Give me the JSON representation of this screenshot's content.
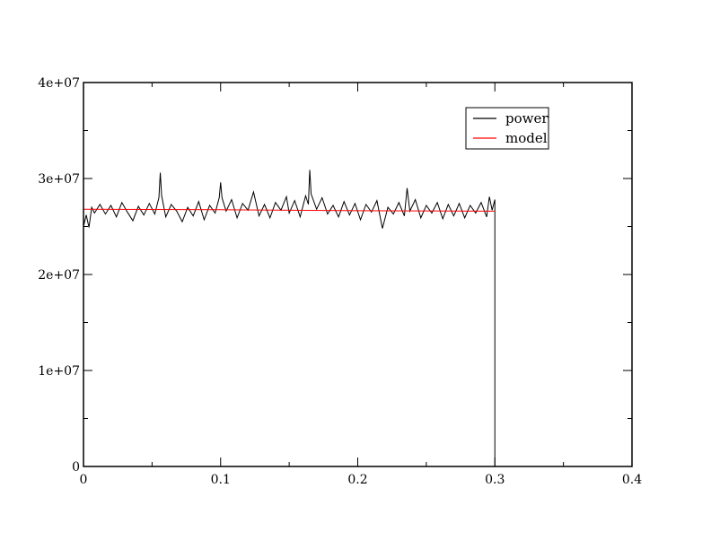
{
  "chart_data": {
    "type": "line",
    "title": "",
    "xlabel": "",
    "ylabel": "",
    "xlim": [
      0,
      0.4
    ],
    "ylim": [
      0,
      40000000
    ],
    "x_ticks": [
      {
        "value": 0,
        "label": "0"
      },
      {
        "value": 0.1,
        "label": "0.1"
      },
      {
        "value": 0.2,
        "label": "0.2"
      },
      {
        "value": 0.3,
        "label": "0.3"
      },
      {
        "value": 0.4,
        "label": "0.4"
      }
    ],
    "y_ticks": [
      {
        "value": 0,
        "label": "0"
      },
      {
        "value": 10000000,
        "label": "1e+07"
      },
      {
        "value": 20000000,
        "label": "2e+07"
      },
      {
        "value": 30000000,
        "label": "3e+07"
      },
      {
        "value": 40000000,
        "label": "4e+07"
      }
    ],
    "grid": false,
    "legend_position": "top-right",
    "series": [
      {
        "name": "power",
        "color": "#000000",
        "style": "noisy line around the model level, ending with a vertical drop to 0 at x = 0.3",
        "points": [
          [
            0.0,
            25000000
          ],
          [
            0.002,
            26200000
          ],
          [
            0.004,
            24900000
          ],
          [
            0.006,
            27000000
          ],
          [
            0.008,
            26400000
          ],
          [
            0.012,
            27300000
          ],
          [
            0.016,
            26300000
          ],
          [
            0.02,
            27200000
          ],
          [
            0.024,
            26000000
          ],
          [
            0.028,
            27500000
          ],
          [
            0.032,
            26500000
          ],
          [
            0.036,
            25600000
          ],
          [
            0.04,
            27100000
          ],
          [
            0.044,
            26200000
          ],
          [
            0.048,
            27400000
          ],
          [
            0.052,
            26300000
          ],
          [
            0.055,
            28000000
          ],
          [
            0.056,
            30600000
          ],
          [
            0.057,
            28200000
          ],
          [
            0.06,
            26000000
          ],
          [
            0.064,
            27300000
          ],
          [
            0.068,
            26600000
          ],
          [
            0.072,
            25500000
          ],
          [
            0.076,
            27000000
          ],
          [
            0.08,
            26100000
          ],
          [
            0.084,
            27600000
          ],
          [
            0.088,
            25700000
          ],
          [
            0.092,
            27200000
          ],
          [
            0.096,
            26400000
          ],
          [
            0.099,
            28000000
          ],
          [
            0.1,
            29600000
          ],
          [
            0.101,
            28000000
          ],
          [
            0.104,
            26600000
          ],
          [
            0.108,
            27800000
          ],
          [
            0.112,
            25900000
          ],
          [
            0.116,
            27400000
          ],
          [
            0.12,
            26700000
          ],
          [
            0.124,
            28600000
          ],
          [
            0.128,
            26100000
          ],
          [
            0.132,
            27300000
          ],
          [
            0.136,
            25900000
          ],
          [
            0.14,
            27500000
          ],
          [
            0.144,
            26700000
          ],
          [
            0.148,
            28100000
          ],
          [
            0.15,
            26400000
          ],
          [
            0.154,
            27700000
          ],
          [
            0.158,
            26000000
          ],
          [
            0.162,
            28200000
          ],
          [
            0.164,
            27300000
          ],
          [
            0.165,
            30900000
          ],
          [
            0.166,
            28400000
          ],
          [
            0.17,
            26800000
          ],
          [
            0.174,
            28000000
          ],
          [
            0.178,
            26300000
          ],
          [
            0.182,
            27200000
          ],
          [
            0.186,
            26000000
          ],
          [
            0.19,
            27600000
          ],
          [
            0.194,
            26200000
          ],
          [
            0.198,
            27400000
          ],
          [
            0.202,
            25700000
          ],
          [
            0.206,
            27300000
          ],
          [
            0.21,
            26500000
          ],
          [
            0.214,
            27700000
          ],
          [
            0.218,
            24800000
          ],
          [
            0.222,
            27000000
          ],
          [
            0.226,
            26300000
          ],
          [
            0.23,
            27500000
          ],
          [
            0.234,
            26100000
          ],
          [
            0.236,
            29000000
          ],
          [
            0.238,
            26600000
          ],
          [
            0.242,
            27800000
          ],
          [
            0.246,
            25900000
          ],
          [
            0.25,
            27200000
          ],
          [
            0.254,
            26400000
          ],
          [
            0.258,
            27500000
          ],
          [
            0.262,
            25800000
          ],
          [
            0.266,
            27300000
          ],
          [
            0.27,
            26100000
          ],
          [
            0.274,
            27400000
          ],
          [
            0.278,
            25900000
          ],
          [
            0.282,
            27200000
          ],
          [
            0.286,
            26400000
          ],
          [
            0.29,
            27500000
          ],
          [
            0.294,
            26000000
          ],
          [
            0.296,
            28100000
          ],
          [
            0.298,
            26700000
          ],
          [
            0.3,
            27800000
          ],
          [
            0.3,
            0
          ]
        ]
      },
      {
        "name": "model",
        "color": "#ff0000",
        "points": [
          [
            0.0,
            26800000
          ],
          [
            0.1,
            26750000
          ],
          [
            0.2,
            26650000
          ],
          [
            0.3,
            26600000
          ]
        ]
      }
    ]
  }
}
